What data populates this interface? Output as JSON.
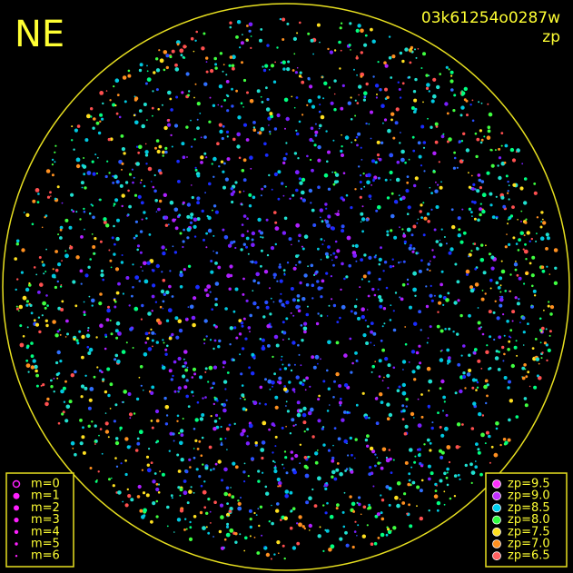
{
  "header": {
    "direction": "NE",
    "frame_id": "03k61254o0287w",
    "color_key": "zp"
  },
  "magnitude_legend": [
    "m=0",
    "m=1",
    "m=2",
    "m=3",
    "m=4",
    "m=5",
    "m=6"
  ],
  "zp_legend": [
    "zp=9.5",
    "zp=9.0",
    "zp=8.5",
    "zp=8.0",
    "zp=7.5",
    "zp=7.0",
    "zp=6.5"
  ]
}
